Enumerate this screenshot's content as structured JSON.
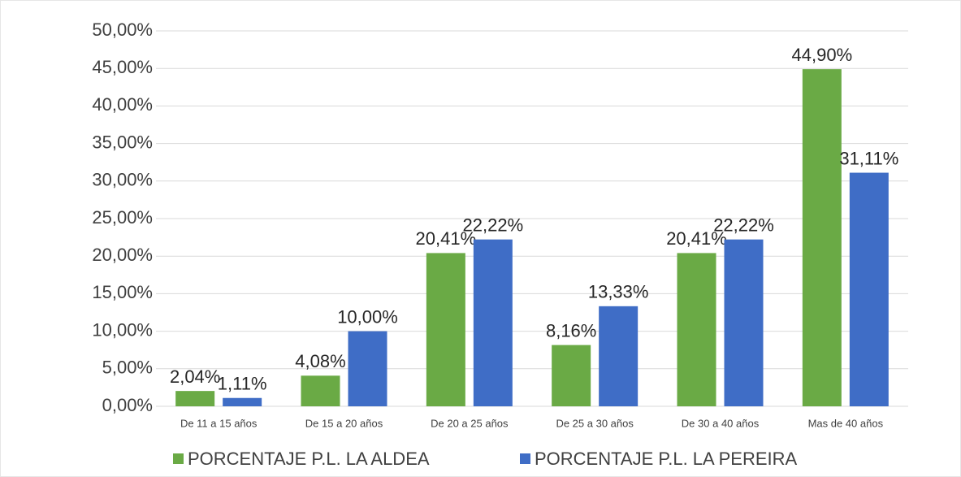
{
  "chart_data": {
    "type": "bar",
    "categories": [
      "De 11 a 15 años",
      "De 15 a 20 años",
      "De 20 a 25 años",
      "De 25 a 30 años",
      "De 30 a 40 años",
      "Mas de 40 años"
    ],
    "series": [
      {
        "name": "PORCENTAJE P.L. LA ALDEA",
        "color": "#6aaa45",
        "values": [
          2.04,
          4.08,
          20.41,
          8.16,
          20.41,
          44.9
        ],
        "value_labels": [
          "2,04%",
          "4,08%",
          "20,41%",
          "8,16%",
          "20,41%",
          "44,90%"
        ]
      },
      {
        "name": "PORCENTAJE P.L. LA PEREIRA",
        "color": "#3f6dc6",
        "values": [
          1.11,
          10.0,
          22.22,
          13.33,
          22.22,
          31.11
        ],
        "value_labels": [
          "1,11%",
          "10,00%",
          "22,22%",
          "13,33%",
          "22,22%",
          "31,11%"
        ]
      }
    ],
    "ylim": [
      0,
      50
    ],
    "yticks": [
      {
        "value": 0,
        "label": "0,00%"
      },
      {
        "value": 5,
        "label": "5,00%"
      },
      {
        "value": 10,
        "label": "10,00%"
      },
      {
        "value": 15,
        "label": "15,00%"
      },
      {
        "value": 20,
        "label": "20,00%"
      },
      {
        "value": 25,
        "label": "25,00%"
      },
      {
        "value": 30,
        "label": "30,00%"
      },
      {
        "value": 35,
        "label": "35,00%"
      },
      {
        "value": 40,
        "label": "40,00%"
      },
      {
        "value": 45,
        "label": "45,00%"
      },
      {
        "value": 50,
        "label": "50,00%"
      }
    ],
    "grid": true,
    "legend": "bottom"
  }
}
